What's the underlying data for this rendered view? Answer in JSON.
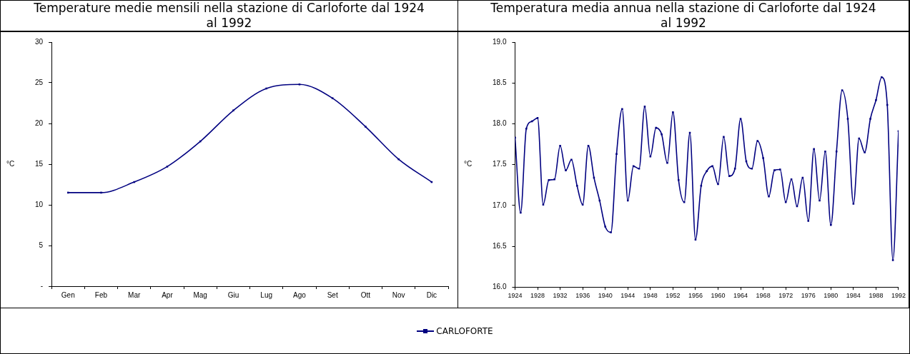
{
  "chart_data": [
    {
      "type": "line",
      "title": "Temperature medie mensili nella stazione di Carloforte dal 1924 al 1992",
      "ylabel": "°C",
      "categories": [
        "Gen",
        "Feb",
        "Mar",
        "Apr",
        "Mag",
        "Giu",
        "Lug",
        "Ago",
        "Set",
        "Ott",
        "Nov",
        "Dic"
      ],
      "series": [
        {
          "color": "#000080",
          "values": [
            11.5,
            11.5,
            12.8,
            14.7,
            17.8,
            21.6,
            24.3,
            24.8,
            23.1,
            19.6,
            15.6,
            12.8
          ]
        }
      ],
      "ylim": [
        0,
        30
      ],
      "yticks": [
        {
          "value": 0,
          "label": "-"
        },
        5,
        10,
        15,
        20,
        25,
        30
      ],
      "grid": false,
      "marker": "square",
      "line_style": "solid"
    },
    {
      "type": "line",
      "title": "Temperatura media annua nella stazione di Carloforte dal 1924 al 1992",
      "ylabel": "°C",
      "x": [
        1924,
        1925,
        1926,
        1927,
        1928,
        1929,
        1930,
        1931,
        1932,
        1933,
        1934,
        1935,
        1936,
        1937,
        1938,
        1939,
        1940,
        1941,
        1942,
        1943,
        1944,
        1945,
        1946,
        1947,
        1948,
        1949,
        1950,
        1951,
        1952,
        1953,
        1954,
        1955,
        1956,
        1957,
        1958,
        1959,
        1960,
        1961,
        1962,
        1963,
        1964,
        1965,
        1966,
        1967,
        1968,
        1969,
        1970,
        1971,
        1972,
        1973,
        1974,
        1975,
        1976,
        1977,
        1978,
        1979,
        1980,
        1981,
        1982,
        1983,
        1984,
        1985,
        1986,
        1987,
        1988,
        1989,
        1990,
        1991,
        1992
      ],
      "series": [
        {
          "name": "CARLOFORTE",
          "color": "#000080",
          "values": [
            17.83,
            16.91,
            17.94,
            18.03,
            18.07,
            17.01,
            17.31,
            17.32,
            17.73,
            17.43,
            17.56,
            17.24,
            17.01,
            17.73,
            17.34,
            17.06,
            16.74,
            16.67,
            17.63,
            18.18,
            17.06,
            17.48,
            17.45,
            18.21,
            17.6,
            17.95,
            17.87,
            17.52,
            18.14,
            17.31,
            17.04,
            17.89,
            16.58,
            17.24,
            17.42,
            17.48,
            17.26,
            17.84,
            17.36,
            17.45,
            18.06,
            17.54,
            17.45,
            17.79,
            17.58,
            17.11,
            17.43,
            17.44,
            17.04,
            17.32,
            16.99,
            17.34,
            16.81,
            17.69,
            17.06,
            17.66,
            16.76,
            17.66,
            18.41,
            18.06,
            17.02,
            17.82,
            17.65,
            18.06,
            18.29,
            18.57,
            18.23,
            16.33,
            17.91
          ]
        }
      ],
      "xlim": [
        1924,
        1992
      ],
      "xticks": [
        1924,
        1928,
        1932,
        1936,
        1940,
        1944,
        1948,
        1952,
        1956,
        1960,
        1964,
        1968,
        1972,
        1976,
        1980,
        1984,
        1988,
        1992
      ],
      "ylim": [
        16,
        19
      ],
      "yticks": [
        {
          "value": 16,
          "label": "16.0"
        },
        {
          "value": 16.5,
          "label": "16.5"
        },
        {
          "value": 17,
          "label": "17.0"
        },
        {
          "value": 17.5,
          "label": "17.5"
        },
        {
          "value": 18,
          "label": "18.0"
        },
        {
          "value": 18.5,
          "label": "18.5"
        },
        {
          "value": 19,
          "label": "19.0"
        }
      ],
      "grid": false,
      "legend": "bottom",
      "marker": "square",
      "line_style": "solid"
    }
  ]
}
